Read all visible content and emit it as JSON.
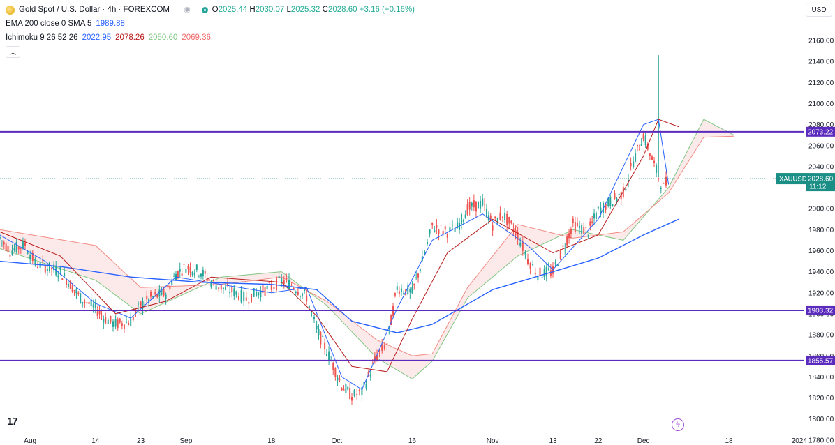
{
  "header": {
    "symbol_title": "Gold Spot / U.S. Dollar · 4h · FOREXCOM",
    "ohlc": {
      "open_label": "O",
      "open": "2025.44",
      "high_label": "H",
      "high": "2030.07",
      "low_label": "L",
      "low": "2025.32",
      "close_label": "C",
      "close": "2028.60",
      "change": "+3.16 (+0.16%)"
    },
    "ema_label": "EMA 200 close 0 SMA 5",
    "ema_value": "1989.88",
    "ichimoku_label": "Ichimoku 9 26 52 26",
    "ichimoku_values": [
      "2022.95",
      "2078.26",
      "2050.60",
      "2069.36"
    ],
    "ichimoku_colors": [
      "#2962ff",
      "#b71c1c",
      "#43a047",
      "#f06b6b"
    ],
    "collapse_icon": "chevron-up-icon"
  },
  "currency": "USD",
  "logo": "17",
  "colors": {
    "up": "#26a69a",
    "down": "#ef5350",
    "ema": "#2962ff",
    "tenkan": "#2962ff",
    "kijun": "#b71c1c",
    "spanA": "#81c784",
    "spanB": "#f28b82",
    "hline": "#5b2bbd",
    "price": "#1b8f86"
  },
  "chart_data": {
    "type": "line",
    "title": "Gold Spot / U.S. Dollar · 4h · FOREXCOM",
    "ylim": [
      1770,
      2175
    ],
    "y_ticks": [
      1780,
      1800,
      1820,
      1840,
      1860,
      1880,
      1900,
      1920,
      1940,
      1960,
      1980,
      2000,
      2020,
      2040,
      2060,
      2080,
      2100,
      2120,
      2140,
      2160
    ],
    "y_tick_labels": [
      "1780.00",
      "1800.00",
      "1820.00",
      "1840.00",
      "1860.00",
      "1880.00",
      "1900.00",
      "1920.00",
      "1940.00",
      "1960.00",
      "1980.00",
      "2000.00",
      "2020.00",
      "2040.00",
      "2060.00",
      "2080.00",
      "2100.00",
      "2120.00",
      "2140.00",
      "2160.00"
    ],
    "x_domain": [
      "2023-07-26",
      "2024-01-02"
    ],
    "x_ticks": [
      {
        "date": "2023-08-01",
        "label": "Aug"
      },
      {
        "date": "2023-08-14",
        "label": "14"
      },
      {
        "date": "2023-08-23",
        "label": "23"
      },
      {
        "date": "2023-09-01",
        "label": "Sep"
      },
      {
        "date": "2023-09-18",
        "label": "18"
      },
      {
        "date": "2023-10-01",
        "label": "Oct"
      },
      {
        "date": "2023-10-16",
        "label": "16"
      },
      {
        "date": "2023-11-01",
        "label": "Nov"
      },
      {
        "date": "2023-11-13",
        "label": "13"
      },
      {
        "date": "2023-11-22",
        "label": "22"
      },
      {
        "date": "2023-12-01",
        "label": "Dec"
      },
      {
        "date": "2023-12-18",
        "label": "18"
      },
      {
        "date": "2024-01-01",
        "label": "2024"
      }
    ],
    "price_series": [
      [
        "2023-07-26",
        1972
      ],
      [
        "2023-07-28",
        1960
      ],
      [
        "2023-07-31",
        1966
      ],
      [
        "2023-08-02",
        1948
      ],
      [
        "2023-08-04",
        1945
      ],
      [
        "2023-08-07",
        1940
      ],
      [
        "2023-08-09",
        1928
      ],
      [
        "2023-08-11",
        1915
      ],
      [
        "2023-08-14",
        1905
      ],
      [
        "2023-08-16",
        1895
      ],
      [
        "2023-08-18",
        1890
      ],
      [
        "2023-08-21",
        1893
      ],
      [
        "2023-08-23",
        1908
      ],
      [
        "2023-08-25",
        1915
      ],
      [
        "2023-08-28",
        1920
      ],
      [
        "2023-08-30",
        1938
      ],
      [
        "2023-09-01",
        1945
      ],
      [
        "2023-09-04",
        1940
      ],
      [
        "2023-09-06",
        1930
      ],
      [
        "2023-09-08",
        1925
      ],
      [
        "2023-09-11",
        1920
      ],
      [
        "2023-09-13",
        1914
      ],
      [
        "2023-09-15",
        1920
      ],
      [
        "2023-09-18",
        1925
      ],
      [
        "2023-09-20",
        1932
      ],
      [
        "2023-09-22",
        1928
      ],
      [
        "2023-09-25",
        1916
      ],
      [
        "2023-09-27",
        1885
      ],
      [
        "2023-09-29",
        1865
      ],
      [
        "2023-10-02",
        1832
      ],
      [
        "2023-10-04",
        1822
      ],
      [
        "2023-10-06",
        1825
      ],
      [
        "2023-10-09",
        1860
      ],
      [
        "2023-10-11",
        1872
      ],
      [
        "2023-10-13",
        1925
      ],
      [
        "2023-10-16",
        1920
      ],
      [
        "2023-10-18",
        1950
      ],
      [
        "2023-10-20",
        1983
      ],
      [
        "2023-10-23",
        1978
      ],
      [
        "2023-10-25",
        1982
      ],
      [
        "2023-10-27",
        2000
      ],
      [
        "2023-10-30",
        2005
      ],
      [
        "2023-11-01",
        1985
      ],
      [
        "2023-11-03",
        1995
      ],
      [
        "2023-11-06",
        1975
      ],
      [
        "2023-11-08",
        1952
      ],
      [
        "2023-11-10",
        1938
      ],
      [
        "2023-11-13",
        1940
      ],
      [
        "2023-11-15",
        1962
      ],
      [
        "2023-11-17",
        1985
      ],
      [
        "2023-11-20",
        1978
      ],
      [
        "2023-11-22",
        1998
      ],
      [
        "2023-11-24",
        2005
      ],
      [
        "2023-11-27",
        2015
      ],
      [
        "2023-11-29",
        2045
      ],
      [
        "2023-12-01",
        2070
      ],
      [
        "2023-12-04",
        2030
      ],
      [
        "2023-12-05",
        2020
      ],
      [
        "2023-12-06",
        2028.6
      ]
    ],
    "spike": {
      "date": "2023-12-04",
      "high": 2146,
      "low": 2030
    },
    "ema_200": [
      [
        "2023-07-26",
        1950
      ],
      [
        "2023-08-07",
        1945
      ],
      [
        "2023-08-21",
        1935
      ],
      [
        "2023-09-04",
        1930
      ],
      [
        "2023-09-18",
        1928
      ],
      [
        "2023-09-27",
        1923
      ],
      [
        "2023-10-04",
        1893
      ],
      [
        "2023-10-13",
        1882
      ],
      [
        "2023-10-20",
        1890
      ],
      [
        "2023-11-01",
        1923
      ],
      [
        "2023-11-13",
        1940
      ],
      [
        "2023-11-22",
        1953
      ],
      [
        "2023-12-01",
        1975
      ],
      [
        "2023-12-08",
        1990
      ]
    ],
    "tenkan": [
      [
        "2023-07-26",
        1975
      ],
      [
        "2023-08-04",
        1950
      ],
      [
        "2023-08-14",
        1910
      ],
      [
        "2023-08-21",
        1896
      ],
      [
        "2023-08-30",
        1935
      ],
      [
        "2023-09-08",
        1928
      ],
      [
        "2023-09-18",
        1920
      ],
      [
        "2023-09-25",
        1925
      ],
      [
        "2023-10-02",
        1840
      ],
      [
        "2023-10-06",
        1828
      ],
      [
        "2023-10-13",
        1905
      ],
      [
        "2023-10-20",
        1970
      ],
      [
        "2023-10-30",
        1995
      ],
      [
        "2023-11-08",
        1965
      ],
      [
        "2023-11-13",
        1942
      ],
      [
        "2023-11-22",
        1990
      ],
      [
        "2023-12-01",
        2080
      ],
      [
        "2023-12-04",
        2085
      ],
      [
        "2023-12-06",
        2023
      ]
    ],
    "kijun": [
      [
        "2023-07-26",
        1978
      ],
      [
        "2023-08-07",
        1955
      ],
      [
        "2023-08-18",
        1900
      ],
      [
        "2023-08-28",
        1912
      ],
      [
        "2023-09-06",
        1935
      ],
      [
        "2023-09-20",
        1930
      ],
      [
        "2023-09-27",
        1898
      ],
      [
        "2023-10-04",
        1850
      ],
      [
        "2023-10-11",
        1845
      ],
      [
        "2023-10-16",
        1895
      ],
      [
        "2023-10-23",
        1958
      ],
      [
        "2023-11-01",
        1990
      ],
      [
        "2023-11-13",
        1958
      ],
      [
        "2023-11-22",
        1975
      ],
      [
        "2023-12-01",
        2050
      ],
      [
        "2023-12-04",
        2085
      ],
      [
        "2023-12-08",
        2078
      ]
    ],
    "span_a": [
      [
        "2023-07-26",
        1962
      ],
      [
        "2023-08-14",
        1932
      ],
      [
        "2023-08-23",
        1900
      ],
      [
        "2023-09-08",
        1935
      ],
      [
        "2023-09-20",
        1940
      ],
      [
        "2023-09-29",
        1908
      ],
      [
        "2023-10-09",
        1858
      ],
      [
        "2023-10-16",
        1838
      ],
      [
        "2023-10-20",
        1855
      ],
      [
        "2023-10-27",
        1915
      ],
      [
        "2023-11-06",
        1955
      ],
      [
        "2023-11-17",
        1980
      ],
      [
        "2023-11-27",
        1970
      ],
      [
        "2023-12-06",
        2020
      ],
      [
        "2023-12-13",
        2085
      ],
      [
        "2023-12-19",
        2070
      ]
    ],
    "span_b": [
      [
        "2023-07-26",
        1980
      ],
      [
        "2023-08-14",
        1965
      ],
      [
        "2023-08-23",
        1925
      ],
      [
        "2023-09-08",
        1928
      ],
      [
        "2023-09-20",
        1935
      ],
      [
        "2023-09-29",
        1912
      ],
      [
        "2023-10-09",
        1875
      ],
      [
        "2023-10-16",
        1860
      ],
      [
        "2023-10-20",
        1862
      ],
      [
        "2023-10-27",
        1925
      ],
      [
        "2023-11-06",
        1985
      ],
      [
        "2023-11-17",
        1972
      ],
      [
        "2023-11-27",
        1978
      ],
      [
        "2023-12-06",
        2015
      ],
      [
        "2023-12-13",
        2068
      ],
      [
        "2023-12-19",
        2069
      ]
    ],
    "h_levels": [
      {
        "value": 2073.22,
        "label": "2073.22"
      },
      {
        "value": 1903.32,
        "label": "1903.32"
      },
      {
        "value": 1855.57,
        "label": "1855.57"
      }
    ],
    "current_price": {
      "value": 2028.6,
      "label": "2028.60",
      "symbol": "XAUUSD",
      "countdown": "11:12"
    }
  }
}
